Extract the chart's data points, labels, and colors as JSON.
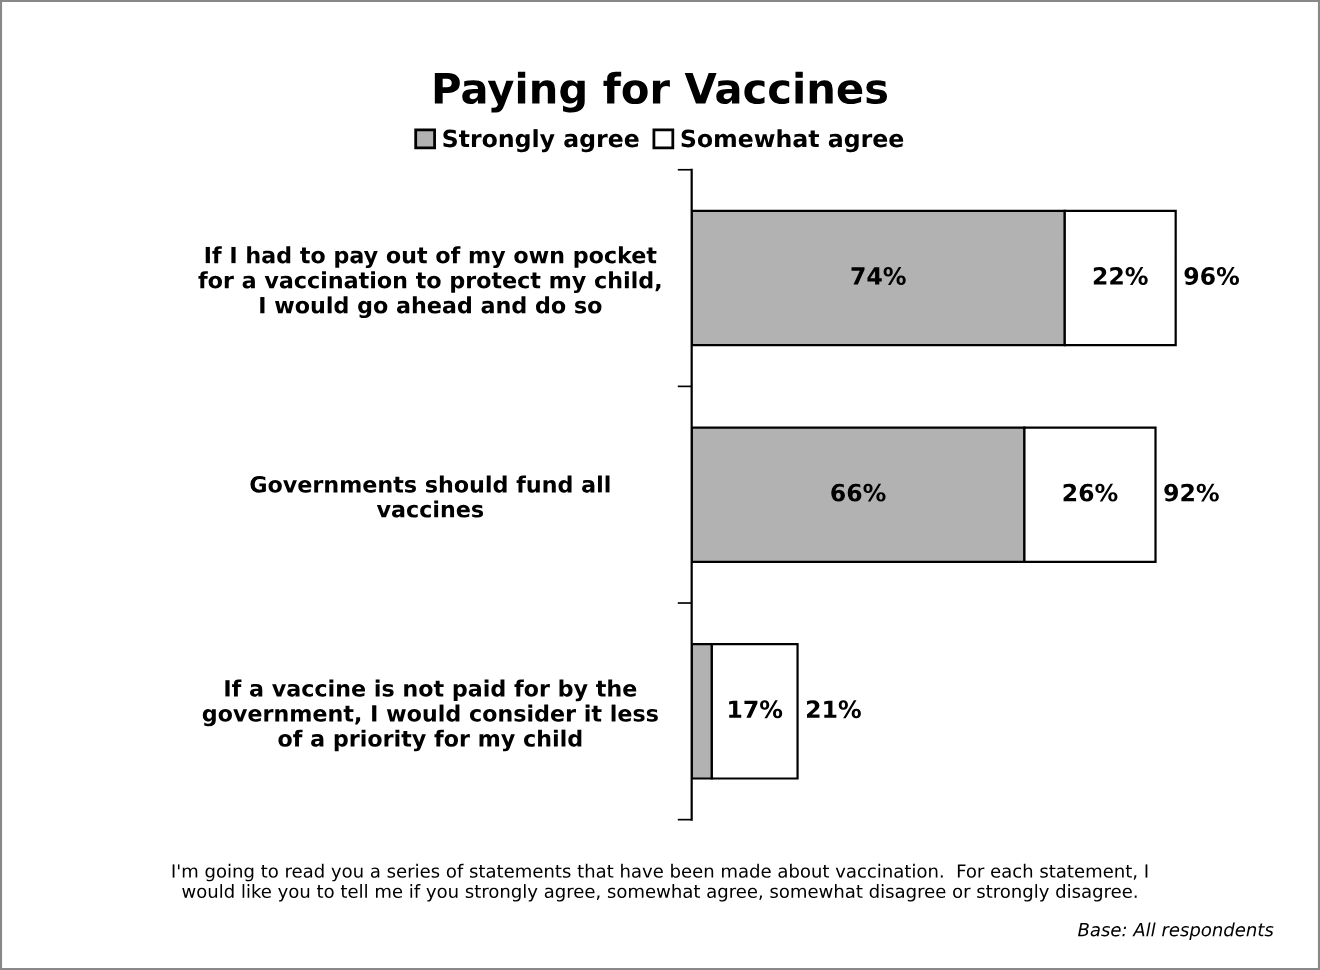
{
  "chart_data": {
    "type": "bar",
    "orientation": "horizontal",
    "stacked": true,
    "title": "Paying for Vaccines",
    "categories": [
      "If I had to pay out of my own pocket\nfor a vaccination to protect my child,\nI would go ahead and do so",
      "Governments should fund all\nvaccines",
      "If a vaccine is not paid for by the\ngovernment, I would consider it less\nof a priority for my child"
    ],
    "series": [
      {
        "name": "Strongly agree",
        "color": "#b2b2b2",
        "values": [
          74,
          66,
          4
        ],
        "value_labels": [
          "74%",
          "66%",
          null
        ]
      },
      {
        "name": "Somewhat agree",
        "color": "#ffffff",
        "values": [
          22,
          26,
          17
        ],
        "value_labels": [
          "22%",
          "26%",
          "17%"
        ]
      }
    ],
    "totals": [
      "96%",
      "92%",
      "21%"
    ],
    "legend": "top",
    "grid": false,
    "annotations": [
      "I'm going to read you a series of statements that have been made about vaccination.  For each statement, I\nwould like you to tell me if you strongly agree, somewhat agree, somewhat disagree or strongly disagree.",
      "Base: All respondents"
    ]
  }
}
